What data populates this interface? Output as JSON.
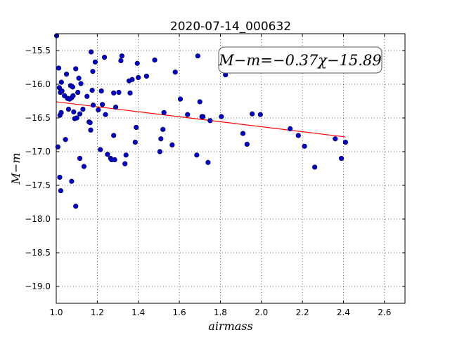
{
  "chart_data": {
    "type": "scatter",
    "title": "2020-07-14_000632",
    "xlabel": "airmass",
    "ylabel": "M−m",
    "xlim": [
      1.0,
      2.7
    ],
    "ylim": [
      -19.25,
      -15.25
    ],
    "y_inverted": true,
    "grid": true,
    "x_ticks": [
      1.0,
      1.2,
      1.4,
      1.6,
      1.8,
      2.0,
      2.2,
      2.4,
      2.6
    ],
    "x_tick_labels": [
      "1.0",
      "1.2",
      "1.4",
      "1.6",
      "1.8",
      "2.0",
      "2.2",
      "2.4",
      "2.6"
    ],
    "y_ticks": [
      -15.5,
      -16.0,
      -16.5,
      -17.0,
      -17.5,
      -18.0,
      -18.5,
      -19.0
    ],
    "y_tick_labels": [
      "−15.5",
      "−16.0",
      "−16.5",
      "−17.0",
      "−17.5",
      "−18.0",
      "−18.5",
      "−19.0"
    ],
    "fit": {
      "slope": -0.37,
      "intercept": -15.89,
      "x_range": [
        1.0,
        2.41
      ],
      "color": "#ff0000",
      "annotation": "M−m=−0.37χ−15.89"
    },
    "marker_color": "#0000cc",
    "points": [
      [
        1.002,
        -15.28
      ],
      [
        1.008,
        -16.93
      ],
      [
        1.012,
        -15.76
      ],
      [
        1.015,
        -16.05
      ],
      [
        1.017,
        -17.38
      ],
      [
        1.018,
        -16.46
      ],
      [
        1.02,
        -16.12
      ],
      [
        1.022,
        -17.58
      ],
      [
        1.024,
        -16.42
      ],
      [
        1.028,
        -16.1
      ],
      [
        1.025,
        -15.97
      ],
      [
        1.04,
        -16.17
      ],
      [
        1.045,
        -16.82
      ],
      [
        1.05,
        -15.85
      ],
      [
        1.055,
        -16.21
      ],
      [
        1.06,
        -16.37
      ],
      [
        1.065,
        -16.22
      ],
      [
        1.07,
        -16.02
      ],
      [
        1.075,
        -16.2
      ],
      [
        1.075,
        -17.44
      ],
      [
        1.08,
        -16.04
      ],
      [
        1.082,
        -16.17
      ],
      [
        1.085,
        -16.41
      ],
      [
        1.09,
        -16.51
      ],
      [
        1.095,
        -15.77
      ],
      [
        1.095,
        -17.81
      ],
      [
        1.1,
        -16.5
      ],
      [
        1.105,
        -16.12
      ],
      [
        1.11,
        -15.91
      ],
      [
        1.115,
        -16.44
      ],
      [
        1.115,
        -17.1
      ],
      [
        1.12,
        -15.99
      ],
      [
        1.13,
        -16.37
      ],
      [
        1.135,
        -17.22
      ],
      [
        1.15,
        -16.18
      ],
      [
        1.16,
        -16.56
      ],
      [
        1.165,
        -16.57
      ],
      [
        1.168,
        -16.68
      ],
      [
        1.17,
        -15.52
      ],
      [
        1.175,
        -16.09
      ],
      [
        1.178,
        -15.81
      ],
      [
        1.18,
        -16.31
      ],
      [
        1.19,
        -15.67
      ],
      [
        1.205,
        -16.38
      ],
      [
        1.215,
        -16.97
      ],
      [
        1.22,
        -16.1
      ],
      [
        1.225,
        -16.3
      ],
      [
        1.235,
        -15.6
      ],
      [
        1.24,
        -16.45
      ],
      [
        1.25,
        -17.04
      ],
      [
        1.265,
        -17.1
      ],
      [
        1.27,
        -17.12
      ],
      [
        1.28,
        -16.13
      ],
      [
        1.28,
        -16.76
      ],
      [
        1.285,
        -17.12
      ],
      [
        1.29,
        -16.34
      ],
      [
        1.305,
        -16.12
      ],
      [
        1.315,
        -15.65
      ],
      [
        1.32,
        -15.58
      ],
      [
        1.335,
        -17.18
      ],
      [
        1.34,
        -17.05
      ],
      [
        1.355,
        -15.95
      ],
      [
        1.36,
        -16.13
      ],
      [
        1.37,
        -15.93
      ],
      [
        1.385,
        -16.86
      ],
      [
        1.39,
        -16.64
      ],
      [
        1.395,
        -15.69
      ],
      [
        1.4,
        -15.9
      ],
      [
        1.44,
        -15.88
      ],
      [
        1.48,
        -15.64
      ],
      [
        1.505,
        -17.0
      ],
      [
        1.51,
        -16.81
      ],
      [
        1.52,
        -16.67
      ],
      [
        1.525,
        -16.42
      ],
      [
        1.565,
        -16.9
      ],
      [
        1.58,
        -15.82
      ],
      [
        1.605,
        -16.22
      ],
      [
        1.64,
        -16.45
      ],
      [
        1.685,
        -17.05
      ],
      [
        1.69,
        -15.58
      ],
      [
        1.7,
        -16.26
      ],
      [
        1.71,
        -16.48
      ],
      [
        1.715,
        -16.48
      ],
      [
        1.74,
        -17.16
      ],
      [
        1.75,
        -16.54
      ],
      [
        1.805,
        -16.48
      ],
      [
        1.825,
        -15.86
      ],
      [
        1.91,
        -16.73
      ],
      [
        1.93,
        -16.89
      ],
      [
        1.955,
        -16.44
      ],
      [
        1.995,
        -16.45
      ],
      [
        2.14,
        -16.66
      ],
      [
        2.18,
        -16.76
      ],
      [
        2.21,
        -16.92
      ],
      [
        2.26,
        -17.23
      ],
      [
        2.36,
        -16.81
      ],
      [
        2.39,
        -17.1
      ],
      [
        2.41,
        -16.86
      ]
    ]
  }
}
